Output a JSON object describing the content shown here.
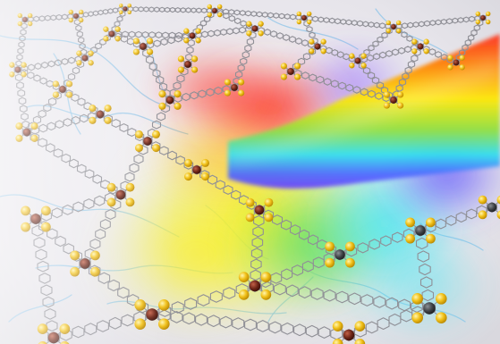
{
  "image": {
    "subject": "molecular-framework-with-spectrum-beam",
    "palette": {
      "background": "#eceaf0",
      "frame_bond": "#8f8f96",
      "metal_node": "#6b2416",
      "metal_node_alt": "#3c3f43",
      "ligand_atom": "#f2c21b",
      "vein": "#8cc4e8",
      "red": "#ff2a1a",
      "orange": "#ff8a00",
      "yellow": "#ffe800",
      "green": "#3fd24a",
      "cyan": "#2ee0f0",
      "blue": "#4a6cff",
      "violet": "#6a3dff"
    }
  }
}
